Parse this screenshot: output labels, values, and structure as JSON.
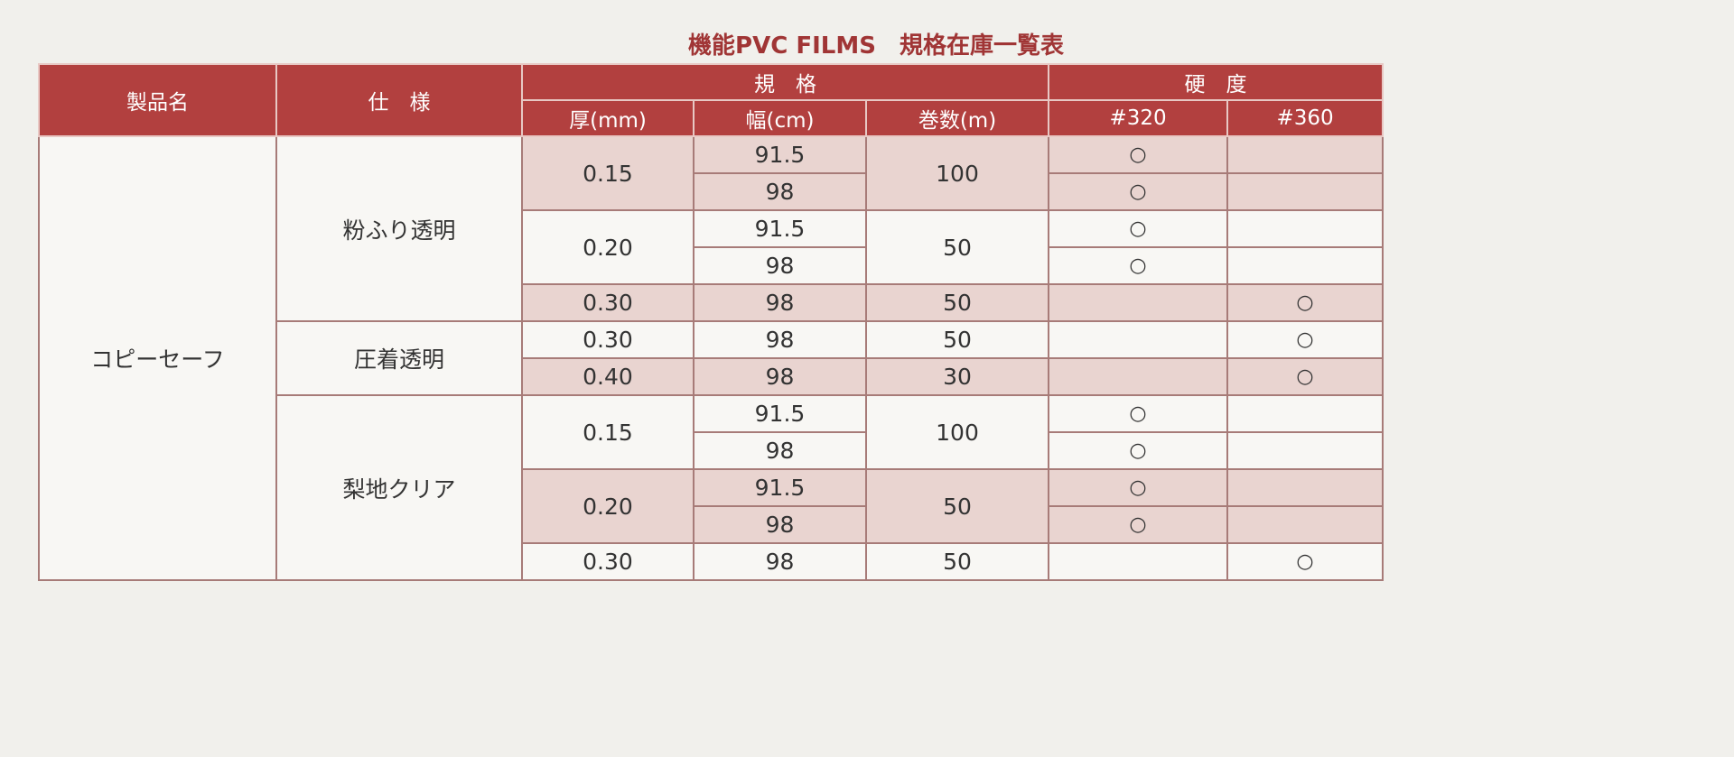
{
  "title": "機能PVC FILMS　規格在庫一覧表",
  "headers": {
    "product": "製品名",
    "spec": "仕　様",
    "size": "規　格",
    "hardness": "硬　度",
    "thickness": "厚(mm)",
    "width": "幅(cm)",
    "length": "巻数(m)",
    "h320": "#320",
    "h360": "#360"
  },
  "product": "コピーセーフ",
  "groups": [
    {
      "spec": "粉ふり透明",
      "items": [
        {
          "thickness": "0.15",
          "length": "100",
          "rows": [
            {
              "width": "91.5",
              "h320": "○"
            },
            {
              "width": "98",
              "h320": "○"
            }
          ]
        },
        {
          "thickness": "0.20",
          "length": "50",
          "rows": [
            {
              "width": "91.5",
              "h320": "○"
            },
            {
              "width": "98",
              "h320": "○"
            }
          ]
        },
        {
          "thickness": "0.30",
          "length": "50",
          "rows": [
            {
              "width": "98",
              "h360": "○"
            }
          ]
        }
      ]
    },
    {
      "spec": "圧着透明",
      "items": [
        {
          "thickness": "0.30",
          "length": "50",
          "rows": [
            {
              "width": "98",
              "h360": "○"
            }
          ]
        },
        {
          "thickness": "0.40",
          "length": "30",
          "rows": [
            {
              "width": "98",
              "h360": "○"
            }
          ]
        }
      ]
    },
    {
      "spec": "梨地クリア",
      "items": [
        {
          "thickness": "0.15",
          "length": "100",
          "rows": [
            {
              "width": "91.5",
              "h320": "○"
            },
            {
              "width": "98",
              "h320": "○"
            }
          ]
        },
        {
          "thickness": "0.20",
          "length": "50",
          "rows": [
            {
              "width": "91.5",
              "h320": "○"
            },
            {
              "width": "98",
              "h320": "○"
            }
          ]
        },
        {
          "thickness": "0.30",
          "length": "50",
          "rows": [
            {
              "width": "98",
              "h360": "○"
            }
          ]
        }
      ]
    }
  ]
}
